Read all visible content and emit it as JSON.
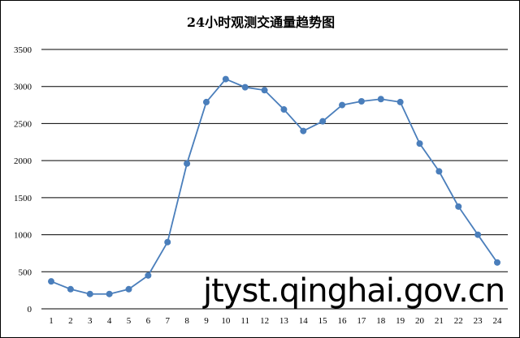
{
  "chart_data": {
    "type": "line",
    "title": "24小时观测交通量趋势图",
    "xlabel": "",
    "ylabel": "",
    "categories": [
      "1",
      "2",
      "3",
      "4",
      "5",
      "6",
      "7",
      "8",
      "9",
      "10",
      "11",
      "12",
      "13",
      "14",
      "15",
      "16",
      "17",
      "18",
      "19",
      "20",
      "21",
      "22",
      "23",
      "24"
    ],
    "series": [
      {
        "values": [
          370,
          265,
          200,
          200,
          265,
          450,
          900,
          1960,
          2790,
          3100,
          2990,
          2950,
          2690,
          2400,
          2530,
          2750,
          2800,
          2830,
          2790,
          2230,
          1855,
          1380,
          1000,
          625
        ]
      }
    ],
    "ylim": [
      0,
      3500
    ],
    "yticks": [
      "0",
      "500",
      "1000",
      "1500",
      "2000",
      "2500",
      "3000",
      "3500"
    ],
    "grid": "horizontal",
    "legend": "none",
    "line_color": "#4A7EBB",
    "marker": "circle"
  },
  "watermark": "jtyst.qinghai.gov.cn"
}
